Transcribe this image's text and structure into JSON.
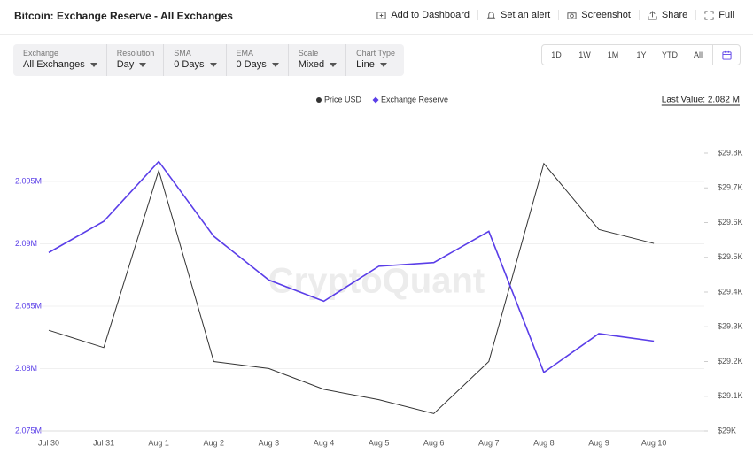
{
  "header": {
    "title": "Bitcoin: Exchange Reserve - All Exchanges",
    "actions": [
      "Add to Dashboard",
      "Set an alert",
      "Screenshot",
      "Share",
      "Full"
    ]
  },
  "filters": [
    {
      "label": "Exchange",
      "value": "All Exchanges"
    },
    {
      "label": "Resolution",
      "value": "Day"
    },
    {
      "label": "SMA",
      "value": "0 Days"
    },
    {
      "label": "EMA",
      "value": "0 Days"
    },
    {
      "label": "Scale",
      "value": "Mixed"
    },
    {
      "label": "Chart Type",
      "value": "Line"
    }
  ],
  "range_buttons": [
    "1D",
    "1W",
    "1M",
    "1Y",
    "YTD",
    "All"
  ],
  "chart_data": {
    "type": "line",
    "last_value": "Last Value: 2.082 M",
    "watermark": "CryptoQuant",
    "categories": [
      "Jul 30",
      "Jul 31",
      "Aug 1",
      "Aug 2",
      "Aug 3",
      "Aug 4",
      "Aug 5",
      "Aug 6",
      "Aug 7",
      "Aug 8",
      "Aug 9",
      "Aug 10"
    ],
    "series": [
      {
        "name": "Price USD",
        "color": "#333333",
        "axis": "y2",
        "marker": "circle",
        "values": [
          29290,
          29240,
          29750,
          29200,
          29180,
          29120,
          29090,
          29050,
          29200,
          29770,
          29580,
          29540
        ]
      },
      {
        "name": "Exchange Reserve",
        "color": "#5a3ee8",
        "marker": "diamond",
        "values": [
          2089300,
          2091800,
          2096600,
          2090600,
          2087100,
          2085400,
          2088200,
          2088500,
          2091000,
          2079700,
          2082800,
          2082200
        ]
      }
    ],
    "ylim": [
      2075000,
      2097270
    ],
    "yticks": [
      {
        "value": 2075000,
        "label": "2.075M"
      },
      {
        "value": 2080000,
        "label": "2.08M"
      },
      {
        "value": 2085000,
        "label": "2.085M"
      },
      {
        "value": 2090000,
        "label": "2.09M"
      },
      {
        "value": 2095000,
        "label": "2.095M"
      }
    ],
    "y2lim": [
      29000,
      29800
    ],
    "y2ticks": [
      {
        "value": 29000,
        "label": "$29K"
      },
      {
        "value": 29100,
        "label": "$29.1K"
      },
      {
        "value": 29200,
        "label": "$29.2K"
      },
      {
        "value": 29300,
        "label": "$29.3K"
      },
      {
        "value": 29400,
        "label": "$29.4K"
      },
      {
        "value": 29500,
        "label": "$29.5K"
      },
      {
        "value": 29600,
        "label": "$29.6K"
      },
      {
        "value": 29700,
        "label": "$29.7K"
      },
      {
        "value": 29800,
        "label": "$29.8K"
      }
    ],
    "grid": true
  }
}
